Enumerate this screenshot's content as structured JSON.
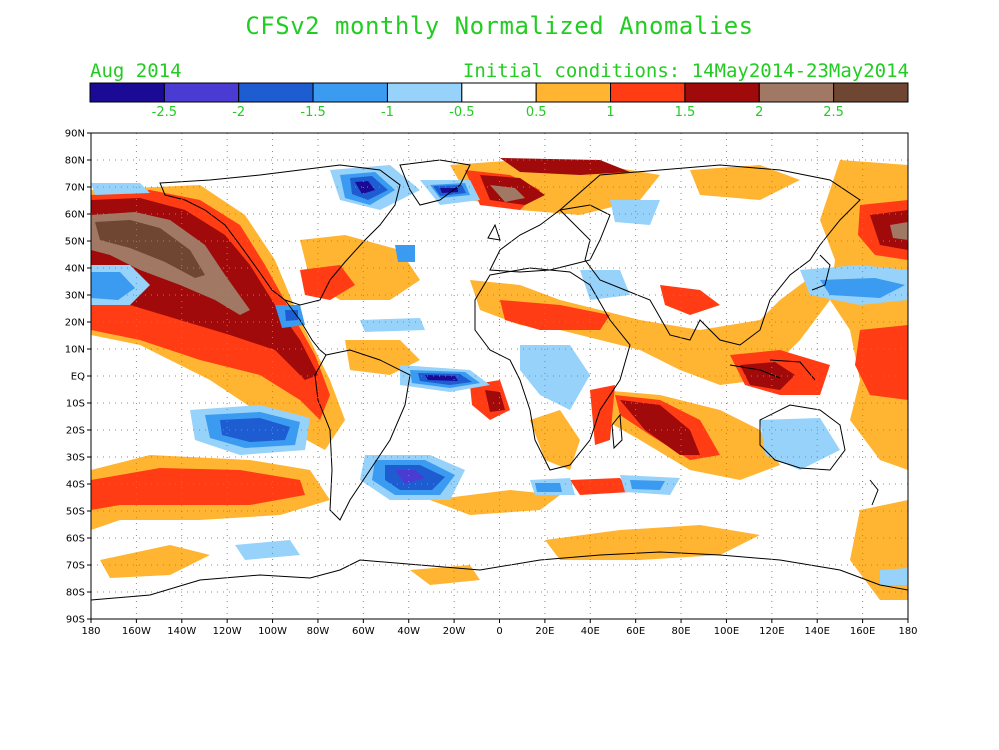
{
  "title": "CFSv2 monthly Normalized Anomalies",
  "month": "Aug 2014",
  "initial_conditions": "Initial conditions: 14May2014-23May2014",
  "colorbar": {
    "colors": [
      "#1a0a96",
      "#4a3cd2",
      "#1e5cd2",
      "#3a9bf0",
      "#96d2fa",
      "#ffffff",
      "#ffb432",
      "#ff3c14",
      "#a00a0a",
      "#a07864",
      "#6e4632"
    ],
    "labels": [
      "-2.5",
      "-2",
      "-1.5",
      "-1",
      "-0.5",
      "0.5",
      "1",
      "1.5",
      "2",
      "2.5"
    ]
  },
  "map": {
    "lat_labels": [
      "90N",
      "80N",
      "70N",
      "60N",
      "50N",
      "40N",
      "30N",
      "20N",
      "10N",
      "EQ",
      "10S",
      "20S",
      "30S",
      "40S",
      "50S",
      "60S",
      "70S",
      "80S",
      "90S"
    ],
    "lon_labels": [
      "180",
      "160W",
      "140W",
      "120W",
      "100W",
      "80W",
      "60W",
      "40W",
      "20W",
      "0",
      "20E",
      "40E",
      "60E",
      "80E",
      "100E",
      "120E",
      "140E",
      "160E",
      "180"
    ]
  }
}
